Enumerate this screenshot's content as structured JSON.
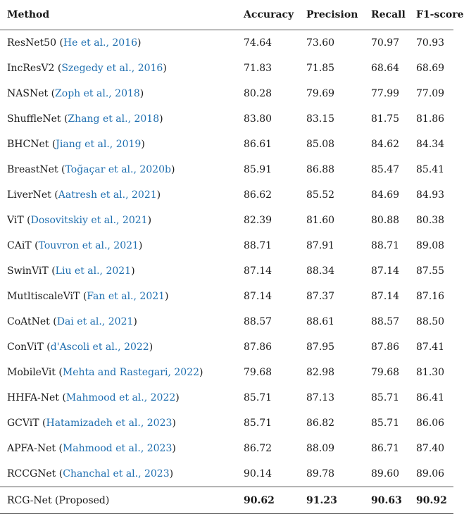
{
  "headers": [
    "Method",
    "Accuracy",
    "Precision",
    "Recall",
    "F1-score"
  ],
  "rows": [
    {
      "method": "ResNet50",
      "cite": "He et al., 2016",
      "acc": "74.64",
      "prec": "73.60",
      "rec": "70.97",
      "f1": "70.93"
    },
    {
      "method": "IncResV2",
      "cite": "Szegedy et al., 2016",
      "acc": "71.83",
      "prec": "71.85",
      "rec": "68.64",
      "f1": "68.69"
    },
    {
      "method": "NASNet",
      "cite": "Zoph et al., 2018",
      "acc": "80.28",
      "prec": "79.69",
      "rec": "77.99",
      "f1": "77.09"
    },
    {
      "method": "ShuffleNet",
      "cite": "Zhang et al., 2018",
      "acc": "83.80",
      "prec": "83.15",
      "rec": "81.75",
      "f1": "81.86"
    },
    {
      "method": "BHCNet",
      "cite": "Jiang et al., 2019",
      "acc": "86.61",
      "prec": "85.08",
      "rec": "84.62",
      "f1": "84.34"
    },
    {
      "method": "BreastNet",
      "cite": "Toğaçar et al., 2020b",
      "acc": "85.91",
      "prec": "86.88",
      "rec": "85.47",
      "f1": "85.41"
    },
    {
      "method": "LiverNet",
      "cite": "Aatresh et al., 2021",
      "acc": "86.62",
      "prec": "85.52",
      "rec": "84.69",
      "f1": "84.93"
    },
    {
      "method": "ViT",
      "cite": "Dosovitskiy et al., 2021",
      "acc": "82.39",
      "prec": "81.60",
      "rec": "80.88",
      "f1": "80.38"
    },
    {
      "method": "CAiT",
      "cite": "Touvron et al., 2021",
      "acc": "88.71",
      "prec": "87.91",
      "rec": "88.71",
      "f1": "89.08"
    },
    {
      "method": "SwinViT",
      "cite": "Liu et al., 2021",
      "acc": "87.14",
      "prec": "88.34",
      "rec": "87.14",
      "f1": "87.55"
    },
    {
      "method": "MutltiscaleViT",
      "cite": "Fan et al., 2021",
      "acc": "87.14",
      "prec": "87.37",
      "rec": "87.14",
      "f1": "87.16"
    },
    {
      "method": "CoAtNet",
      "cite": "Dai et al., 2021",
      "acc": "88.57",
      "prec": "88.61",
      "rec": "88.57",
      "f1": "88.50"
    },
    {
      "method": "ConViT",
      "cite": "d'Ascoli et al., 2022",
      "acc": "87.86",
      "prec": "87.95",
      "rec": "87.86",
      "f1": "87.41"
    },
    {
      "method": "MobileVit",
      "cite": "Mehta and Rastegari, 2022",
      "acc": "79.68",
      "prec": "82.98",
      "rec": "79.68",
      "f1": "81.30"
    },
    {
      "method": "HHFA-Net",
      "cite": "Mahmood et al., 2022",
      "acc": "85.71",
      "prec": "87.13",
      "rec": "85.71",
      "f1": "86.41"
    },
    {
      "method": "GCViT",
      "cite": "Hatamizadeh et al., 2023",
      "acc": "85.71",
      "prec": "86.82",
      "rec": "85.71",
      "f1": "86.06"
    },
    {
      "method": "APFA-Net",
      "cite": "Mahmood et al., 2023",
      "acc": "86.72",
      "prec": "88.09",
      "rec": "86.71",
      "f1": "87.40"
    },
    {
      "method": "RCCGNet",
      "cite": "Chanchal et al., 2023",
      "acc": "90.14",
      "prec": "89.78",
      "rec": "89.60",
      "f1": "89.06"
    }
  ],
  "proposed": {
    "method": "RCG-Net",
    "note": "Proposed",
    "acc": "90.62",
    "prec": "91.23",
    "rec": "90.63",
    "f1": "90.92"
  },
  "colors": {
    "citation": "#1f6fb0",
    "text": "#1a1a1a"
  }
}
